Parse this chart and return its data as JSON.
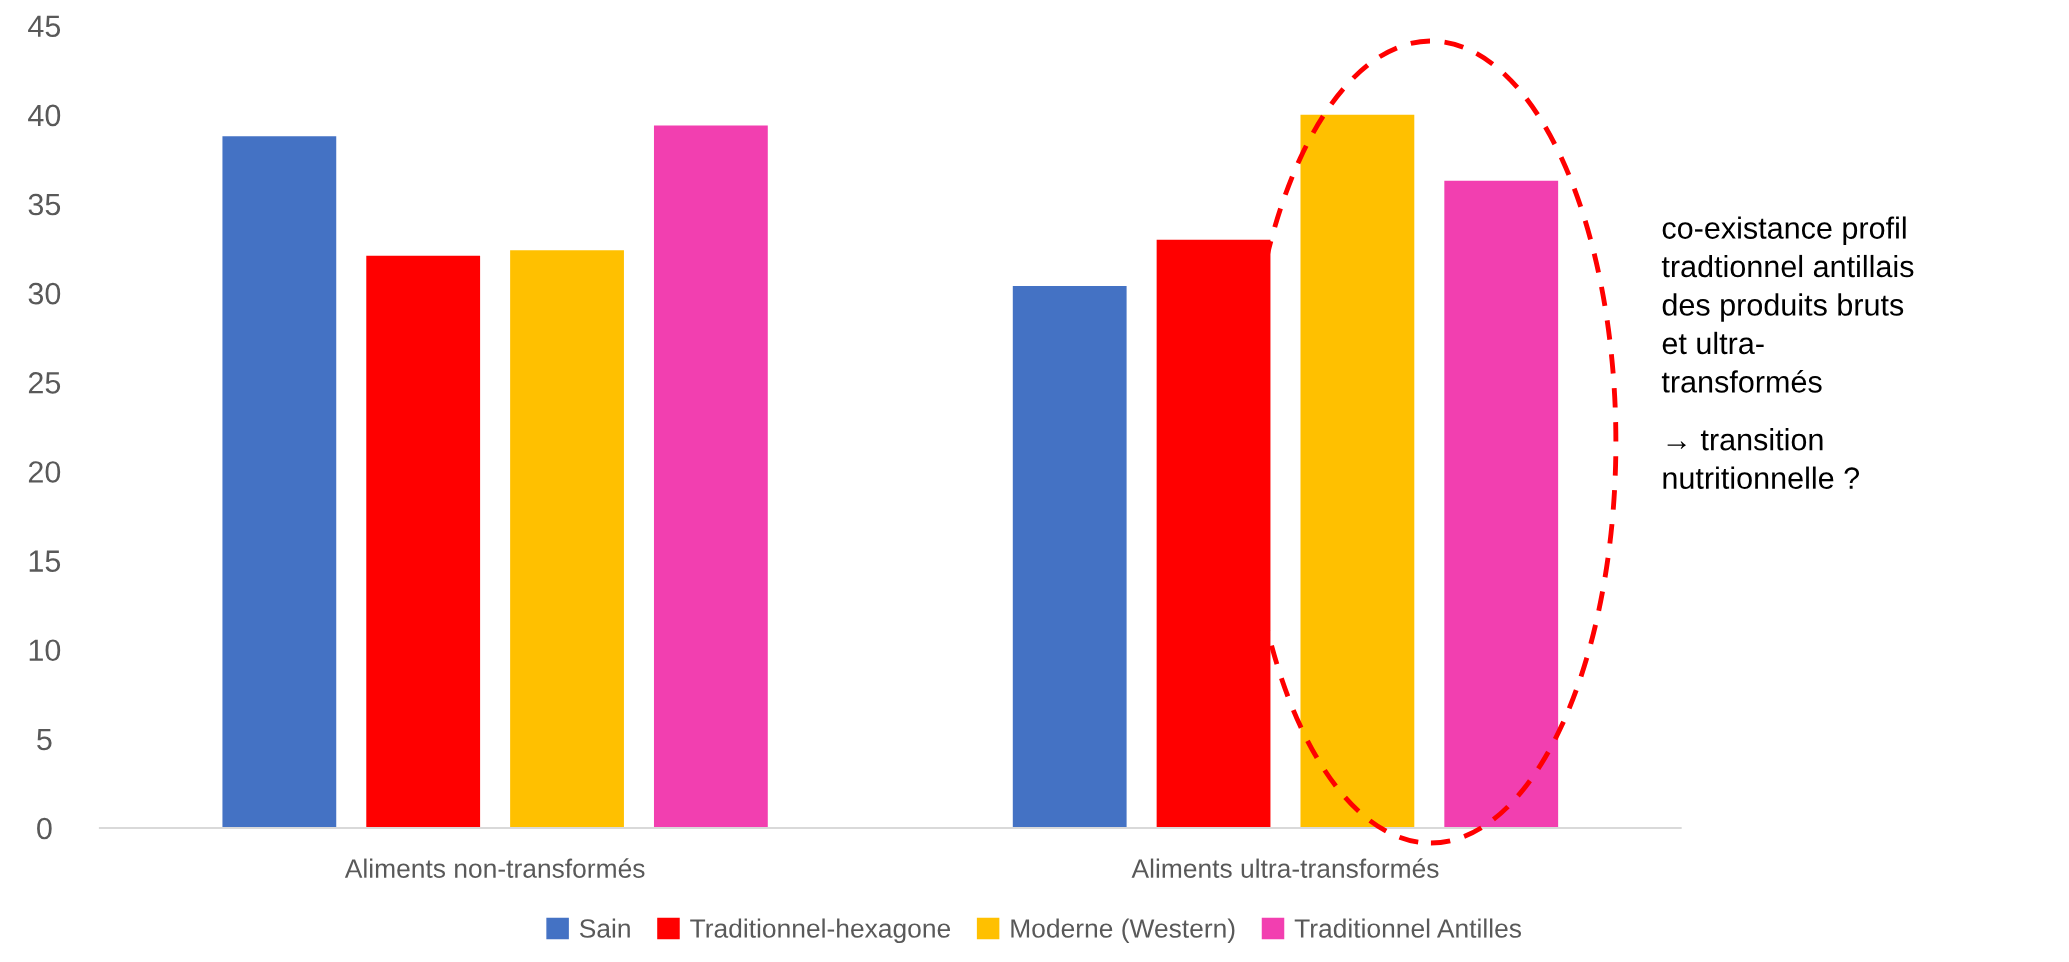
{
  "chart_data": {
    "type": "bar",
    "categories": [
      "Aliments non-transformés",
      "Aliments ultra-transformés"
    ],
    "series": [
      {
        "name": "Sain",
        "color": "#4472c4",
        "values": [
          38.8,
          30.4
        ]
      },
      {
        "name": "Traditionnel-hexagone",
        "color": "#ff0000",
        "values": [
          32.1,
          33.0
        ]
      },
      {
        "name": "Moderne (Western)",
        "color": "#ffc000",
        "values": [
          32.4,
          40.0
        ]
      },
      {
        "name": "Traditionnel Antilles",
        "color": "#f23fb0",
        "values": [
          39.4,
          36.3
        ]
      }
    ],
    "ylim": [
      0,
      45
    ],
    "yticks": [
      0,
      5,
      10,
      15,
      20,
      25,
      30,
      35,
      40,
      45
    ],
    "grid": false,
    "legend": "bottom",
    "annotations": [
      "co-existance profil\ntradtionnel antillais\ndes produits bruts\net ultra-\ntransformés",
      "→ transition\nnutritionnelle ?"
    ]
  }
}
